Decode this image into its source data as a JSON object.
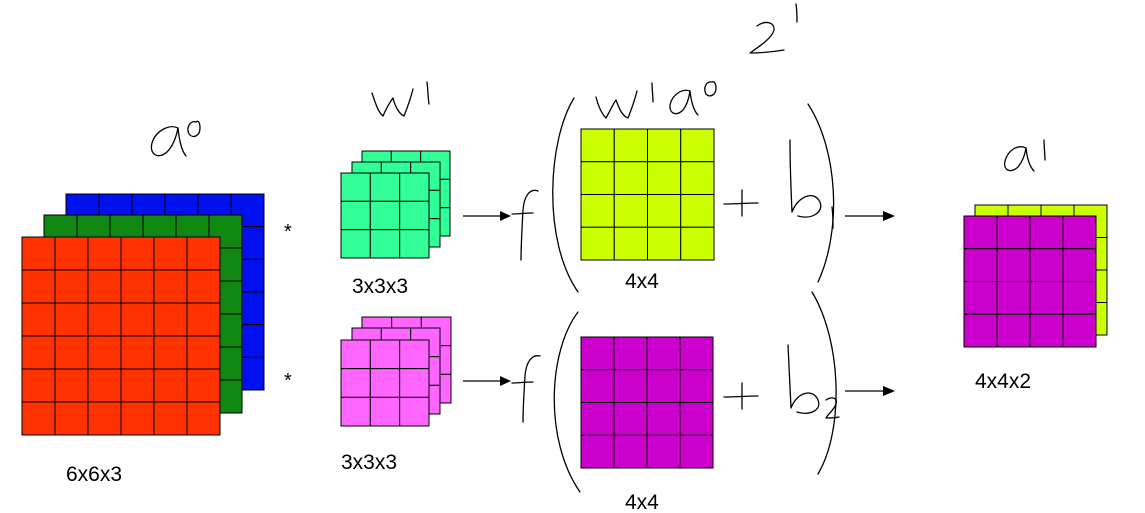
{
  "labels": {
    "input_dims": "6x6x3",
    "filter1_dims": "3x3x3",
    "filter2_dims": "3x3x3",
    "conv1_dims": "4x4",
    "conv2_dims": "4x4",
    "output_dims": "4x4x2",
    "mult1": "*",
    "mult2": "*"
  },
  "handwritten": {
    "input_activation": "a⁰",
    "weights": "W¹",
    "weighted_input": "W¹a⁰",
    "preactivation": "z¹",
    "bias1": "b₁",
    "bias2": "b₂",
    "output_activation": "a¹",
    "function": "f",
    "plus": "+"
  },
  "colors": {
    "input_blue": "#0011ee",
    "input_green": "#118811",
    "input_red": "#ff3300",
    "filter1": "#33ff99",
    "filter2": "#ff66ff",
    "conv1": "#ccff00",
    "conv2": "#cc00cc",
    "output_back": "#ccff00",
    "output_front": "#cc00cc"
  }
}
